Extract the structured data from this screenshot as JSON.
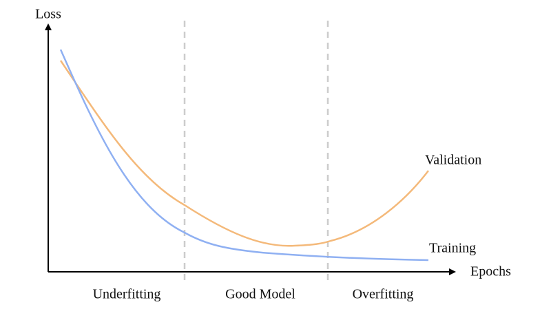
{
  "axes": {
    "y_label": "Loss",
    "x_label": "Epochs"
  },
  "curves": {
    "validation": "Validation",
    "training": "Training"
  },
  "regions": [
    "Underfitting",
    "Good Model",
    "Overfitting"
  ]
}
